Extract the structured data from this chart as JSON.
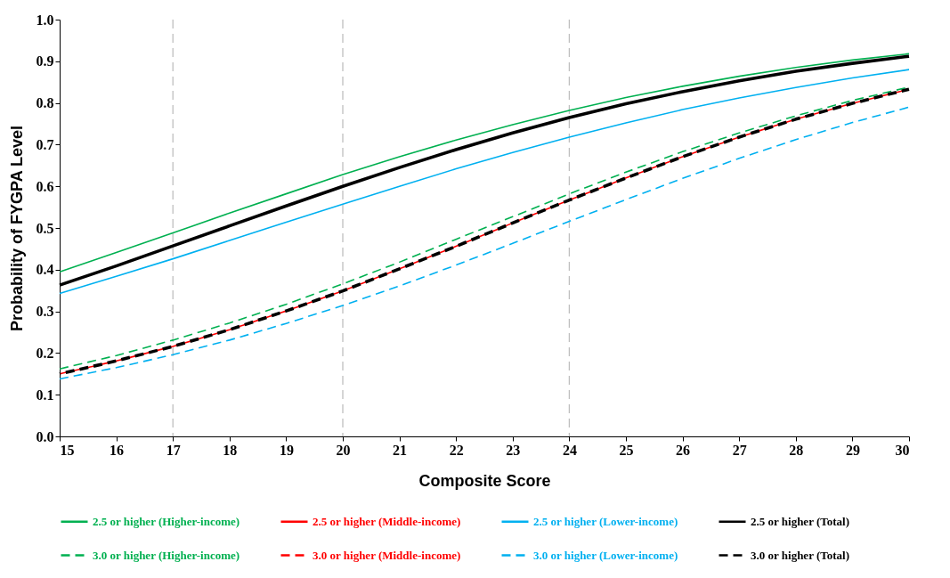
{
  "chart_data": {
    "type": "line",
    "xlabel": "Composite Score",
    "ylabel": "Probability of FYGPA Level",
    "x": [
      15,
      16,
      17,
      18,
      19,
      20,
      21,
      22,
      23,
      24,
      25,
      26,
      27,
      28,
      29,
      30
    ],
    "xlim": [
      15,
      30
    ],
    "xticks": [
      15,
      16,
      17,
      18,
      19,
      20,
      21,
      22,
      23,
      24,
      25,
      26,
      27,
      28,
      29,
      30
    ],
    "ylim": [
      0,
      1
    ],
    "yticks": [
      {
        "value": 0,
        "label": "0.0"
      },
      0.1,
      0.2,
      0.3,
      0.4,
      0.5,
      0.6,
      0.7,
      0.8,
      0.9,
      {
        "value": 1,
        "label": "1.0"
      }
    ],
    "legend": "bottom",
    "marker": "none",
    "ref_lines": [
      {
        "axis": "x",
        "value": 17,
        "color": "#bfbfbf",
        "line_style": "dashed"
      },
      {
        "axis": "x",
        "value": 20,
        "color": "#bfbfbf",
        "line_style": "dashed"
      },
      {
        "axis": "x",
        "value": 24,
        "color": "#bfbfbf",
        "line_style": "dashed"
      }
    ],
    "series": [
      {
        "name": "2.5 or higher (Higher-income)",
        "color": "#00b050",
        "line_style": "solid",
        "values": [
          0.395,
          0.441,
          0.488,
          0.536,
          0.582,
          0.628,
          0.671,
          0.711,
          0.748,
          0.782,
          0.813,
          0.84,
          0.864,
          0.885,
          0.903,
          0.918
        ]
      },
      {
        "name": "2.5 or higher (Middle-income)",
        "color": "#ff0000",
        "line_style": "solid",
        "values": [
          null,
          null,
          null,
          null,
          null,
          null,
          null,
          null,
          null,
          null,
          null,
          null,
          null,
          null,
          null,
          null
        ]
      },
      {
        "name": "2.5 or higher (Lower-income)",
        "color": "#00b0f0",
        "line_style": "solid",
        "values": [
          0.343,
          0.384,
          0.426,
          0.47,
          0.514,
          0.557,
          0.6,
          0.642,
          0.681,
          0.718,
          0.752,
          0.784,
          0.812,
          0.837,
          0.86,
          0.88
        ]
      },
      {
        "name": "2.5 or higher (Total)",
        "color": "#000000",
        "line_style": "solid",
        "values": [
          0.363,
          0.409,
          0.457,
          0.505,
          0.553,
          0.6,
          0.645,
          0.688,
          0.728,
          0.765,
          0.798,
          0.827,
          0.853,
          0.876,
          0.895,
          0.912
        ]
      },
      {
        "name": "3.0 or higher (Higher-income)",
        "color": "#00b050",
        "line_style": "dashed",
        "values": [
          0.162,
          0.194,
          0.231,
          0.272,
          0.317,
          0.366,
          0.418,
          0.473,
          0.527,
          0.582,
          0.634,
          0.683,
          0.728,
          0.769,
          0.806,
          0.838
        ]
      },
      {
        "name": "3.0 or higher (Middle-income)",
        "color": "#ff0000",
        "line_style": "dashed",
        "values": [
          0.15,
          0.181,
          0.216,
          0.256,
          0.301,
          0.349,
          0.402,
          0.456,
          0.512,
          0.567,
          0.62,
          0.671,
          0.718,
          0.761,
          0.799,
          0.833
        ]
      },
      {
        "name": "3.0 or higher (Lower-income)",
        "color": "#00b0f0",
        "line_style": "dashed",
        "values": [
          0.138,
          0.165,
          0.196,
          0.231,
          0.271,
          0.314,
          0.361,
          0.411,
          0.463,
          0.516,
          0.568,
          0.619,
          0.667,
          0.712,
          0.753,
          0.79
        ]
      },
      {
        "name": "3.0 or higher (Total)",
        "color": "#000000",
        "line_style": "dashed",
        "values": [
          0.15,
          0.181,
          0.216,
          0.256,
          0.301,
          0.349,
          0.402,
          0.456,
          0.512,
          0.567,
          0.62,
          0.671,
          0.718,
          0.761,
          0.799,
          0.833
        ]
      }
    ]
  }
}
